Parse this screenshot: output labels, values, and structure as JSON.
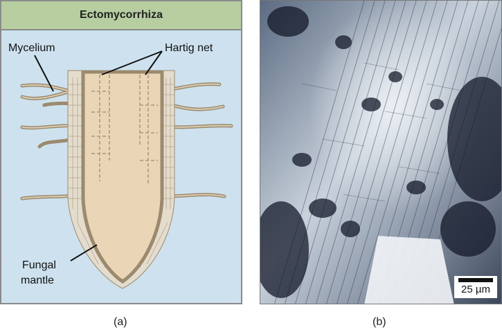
{
  "panel_a": {
    "title": "Ectomycorrhiza",
    "labels": {
      "mycelium": "Mycelium",
      "hartig_net": "Hartig net",
      "fungal_mantle_line1": "Fungal",
      "fungal_mantle_line2": "mantle"
    },
    "caption": "(a)",
    "colors": {
      "background": "#cde2ee",
      "title_bar": "#b7cea1",
      "root": "#ead6b6",
      "hyphae": "#a49277"
    }
  },
  "panel_b": {
    "scale_bar": "25 µm",
    "caption": "(b)"
  }
}
